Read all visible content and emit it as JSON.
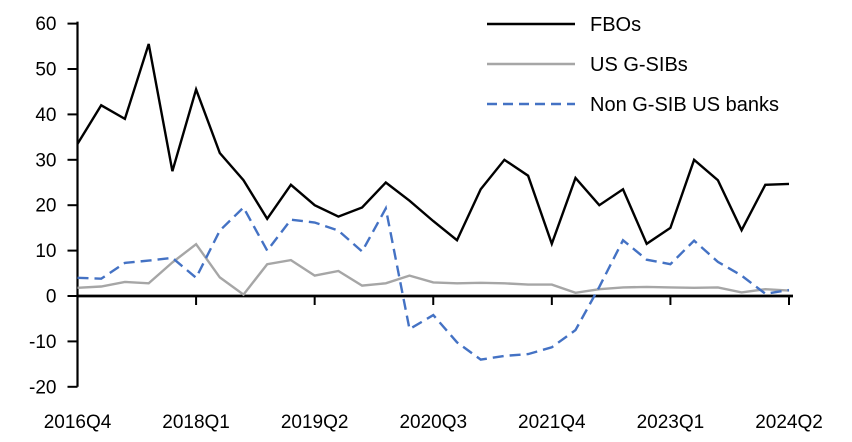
{
  "chart_data": {
    "type": "line",
    "x_categories": [
      "2016Q4",
      "2017Q1",
      "2017Q2",
      "2017Q3",
      "2017Q4",
      "2018Q1",
      "2018Q2",
      "2018Q3",
      "2018Q4",
      "2019Q1",
      "2019Q2",
      "2019Q3",
      "2019Q4",
      "2020Q1",
      "2020Q2",
      "2020Q3",
      "2020Q4",
      "2021Q1",
      "2021Q2",
      "2021Q3",
      "2021Q4",
      "2022Q1",
      "2022Q2",
      "2022Q3",
      "2022Q4",
      "2023Q1",
      "2023Q2",
      "2023Q3",
      "2023Q4",
      "2024Q1",
      "2024Q2"
    ],
    "x_tick_labels": [
      "2016Q4",
      "2018Q1",
      "2019Q2",
      "2020Q3",
      "2021Q4",
      "2023Q1",
      "2024Q2"
    ],
    "x_tick_indices": [
      0,
      5,
      10,
      15,
      20,
      25,
      30
    ],
    "y_ticks": [
      60,
      50,
      40,
      30,
      20,
      10,
      0,
      -10,
      -20
    ],
    "ylim": [
      -20,
      60
    ],
    "grid": false,
    "legend_position": "top-right",
    "title": "",
    "xlabel": "",
    "ylabel": "",
    "series": [
      {
        "name": "FBOs",
        "color": "#000000",
        "dash": "solid",
        "values": [
          33.5,
          42,
          39,
          55.5,
          27.5,
          45.5,
          31.5,
          25.5,
          17,
          24.5,
          20,
          17.5,
          19.5,
          25,
          21,
          16.5,
          12.3,
          23.5,
          30,
          26.5,
          11.5,
          26,
          20,
          23.5,
          11.5,
          15,
          30,
          25.5,
          14.5,
          24.5,
          24.7
        ]
      },
      {
        "name": "US G-SIBs",
        "color": "#A6A6A6",
        "dash": "solid",
        "values": [
          1.8,
          2.1,
          3.1,
          2.8,
          7.4,
          11.4,
          4.1,
          0.3,
          7,
          7.9,
          4.5,
          5.5,
          2.3,
          2.8,
          4.5,
          3,
          2.8,
          2.9,
          2.8,
          2.5,
          2.5,
          0.7,
          1.5,
          1.9,
          2,
          1.9,
          1.8,
          1.9,
          0.8,
          1.5,
          1.2
        ]
      },
      {
        "name": "Non G-SIB US banks",
        "color": "#4472C4",
        "dash": "dashed",
        "values": [
          4,
          3.8,
          7.3,
          7.8,
          8.4,
          4,
          14.4,
          19.5,
          10,
          16.8,
          16.2,
          14.4,
          9.8,
          19.3,
          -7.3,
          -4.2,
          -10.2,
          -14,
          -13.2,
          -12.8,
          -11.3,
          -7.5,
          2,
          12.3,
          8,
          7,
          12.2,
          7.5,
          4.5,
          0.5,
          1.3
        ]
      }
    ],
    "axis_color": "#000000",
    "tick_font_size": 19,
    "legend_font_size": 20
  }
}
